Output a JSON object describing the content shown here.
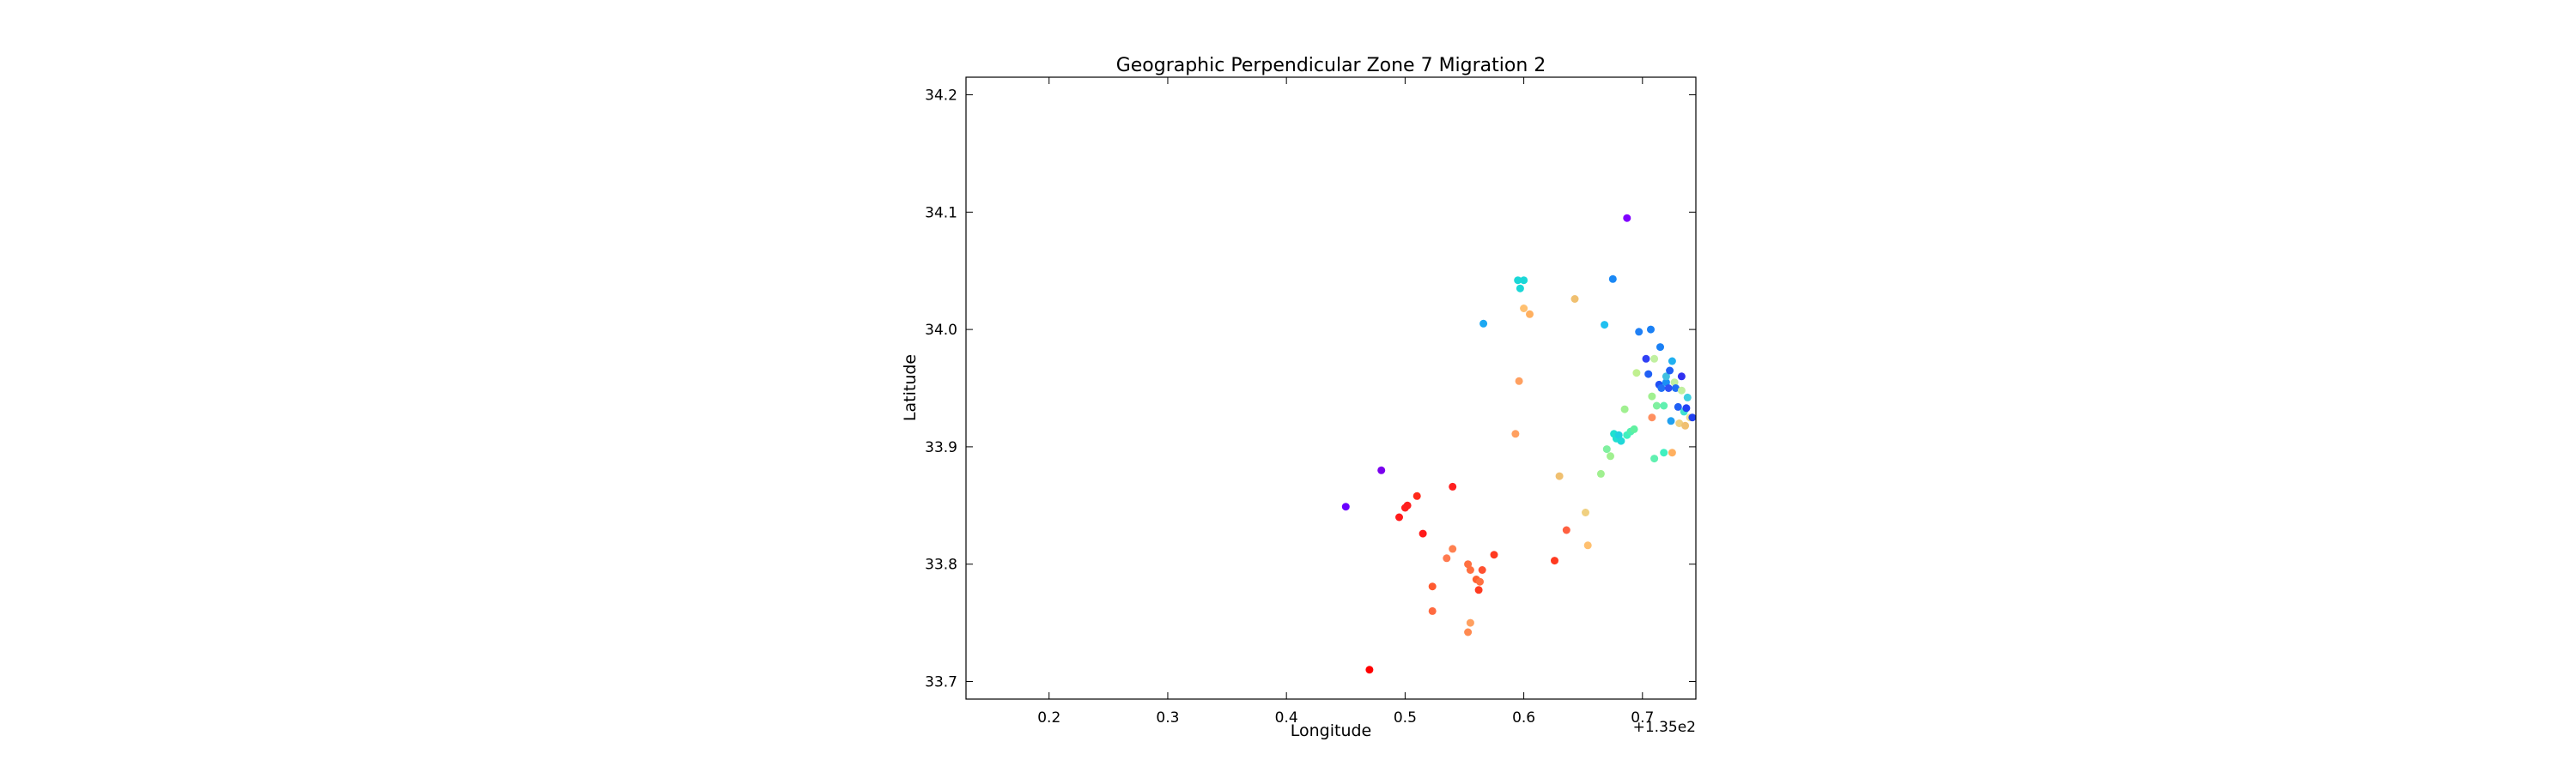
{
  "chart_data": {
    "type": "scatter",
    "title": "Geographic Perpendicular Zone 7 Migration 2",
    "xlabel": "Longitude",
    "ylabel": "Latitude",
    "x_offset_label": "+1.35e2",
    "xlim": [
      135.13,
      135.745
    ],
    "ylim": [
      33.685,
      34.215
    ],
    "xticks": [
      135.2,
      135.3,
      135.4,
      135.5,
      135.6,
      135.7
    ],
    "xtick_labels": [
      "0.2",
      "0.3",
      "0.4",
      "0.5",
      "0.6",
      "0.7"
    ],
    "yticks": [
      33.7,
      33.8,
      33.9,
      34.0,
      34.1,
      34.2
    ],
    "ytick_labels": [
      "33.7",
      "33.8",
      "33.9",
      "34.0",
      "34.1",
      "34.2"
    ],
    "grid": false,
    "legend": "none",
    "colormap": "rainbow",
    "points": [
      {
        "x": 135.45,
        "y": 33.849,
        "color": "#6a00ff"
      },
      {
        "x": 135.48,
        "y": 33.88,
        "color": "#7a00ee"
      },
      {
        "x": 135.687,
        "y": 34.095,
        "color": "#8000ff"
      },
      {
        "x": 135.47,
        "y": 33.71,
        "color": "#ff0000"
      },
      {
        "x": 135.495,
        "y": 33.84,
        "color": "#ff1a1a"
      },
      {
        "x": 135.5,
        "y": 33.848,
        "color": "#ff2020"
      },
      {
        "x": 135.502,
        "y": 33.85,
        "color": "#ff2020"
      },
      {
        "x": 135.51,
        "y": 33.858,
        "color": "#ff2a1a"
      },
      {
        "x": 135.515,
        "y": 33.826,
        "color": "#ff1a1a"
      },
      {
        "x": 135.54,
        "y": 33.866,
        "color": "#ff2020"
      },
      {
        "x": 135.523,
        "y": 33.781,
        "color": "#ff5a30"
      },
      {
        "x": 135.523,
        "y": 33.76,
        "color": "#ff6a40"
      },
      {
        "x": 135.535,
        "y": 33.805,
        "color": "#ff7a50"
      },
      {
        "x": 135.54,
        "y": 33.813,
        "color": "#ff8050"
      },
      {
        "x": 135.553,
        "y": 33.8,
        "color": "#ff7040"
      },
      {
        "x": 135.555,
        "y": 33.795,
        "color": "#ff7040"
      },
      {
        "x": 135.553,
        "y": 33.742,
        "color": "#ff8a50"
      },
      {
        "x": 135.555,
        "y": 33.75,
        "color": "#ffa060"
      },
      {
        "x": 135.56,
        "y": 33.787,
        "color": "#ff6030"
      },
      {
        "x": 135.562,
        "y": 33.778,
        "color": "#ff3a20"
      },
      {
        "x": 135.563,
        "y": 33.785,
        "color": "#ff7040"
      },
      {
        "x": 135.565,
        "y": 33.795,
        "color": "#ff5030"
      },
      {
        "x": 135.575,
        "y": 33.808,
        "color": "#ff3a20"
      },
      {
        "x": 135.566,
        "y": 34.005,
        "color": "#1ca8f2"
      },
      {
        "x": 135.595,
        "y": 34.042,
        "color": "#1ad7d7"
      },
      {
        "x": 135.597,
        "y": 34.035,
        "color": "#1ad7d7"
      },
      {
        "x": 135.6,
        "y": 34.042,
        "color": "#1ad7d7"
      },
      {
        "x": 135.6,
        "y": 34.018,
        "color": "#ffc070"
      },
      {
        "x": 135.605,
        "y": 34.013,
        "color": "#ffb060"
      },
      {
        "x": 135.596,
        "y": 33.956,
        "color": "#ffa060"
      },
      {
        "x": 135.593,
        "y": 33.911,
        "color": "#ffa060"
      },
      {
        "x": 135.63,
        "y": 33.875,
        "color": "#f0c070"
      },
      {
        "x": 135.636,
        "y": 33.829,
        "color": "#ff6040"
      },
      {
        "x": 135.626,
        "y": 33.803,
        "color": "#ff3a20"
      },
      {
        "x": 135.643,
        "y": 34.026,
        "color": "#f0c070"
      },
      {
        "x": 135.652,
        "y": 33.844,
        "color": "#f0d080"
      },
      {
        "x": 135.654,
        "y": 33.816,
        "color": "#ffc070"
      },
      {
        "x": 135.665,
        "y": 33.877,
        "color": "#a0f090"
      },
      {
        "x": 135.668,
        "y": 34.004,
        "color": "#20c0f0"
      },
      {
        "x": 135.67,
        "y": 33.898,
        "color": "#80f0a0"
      },
      {
        "x": 135.673,
        "y": 33.892,
        "color": "#a0f090"
      },
      {
        "x": 135.675,
        "y": 34.043,
        "color": "#1a88f5"
      },
      {
        "x": 135.676,
        "y": 33.911,
        "color": "#20e0d0"
      },
      {
        "x": 135.678,
        "y": 33.907,
        "color": "#20e0d0"
      },
      {
        "x": 135.68,
        "y": 33.91,
        "color": "#20d0e0"
      },
      {
        "x": 135.682,
        "y": 33.905,
        "color": "#20d8d8"
      },
      {
        "x": 135.685,
        "y": 33.932,
        "color": "#a0f090"
      },
      {
        "x": 135.687,
        "y": 33.91,
        "color": "#40f0c0"
      },
      {
        "x": 135.69,
        "y": 33.913,
        "color": "#50f0b0"
      },
      {
        "x": 135.693,
        "y": 33.915,
        "color": "#60f0a0"
      },
      {
        "x": 135.695,
        "y": 33.963,
        "color": "#c0f090"
      },
      {
        "x": 135.697,
        "y": 33.998,
        "color": "#2080f5"
      },
      {
        "x": 135.703,
        "y": 33.975,
        "color": "#3040f5"
      },
      {
        "x": 135.705,
        "y": 33.962,
        "color": "#2060f5"
      },
      {
        "x": 135.707,
        "y": 34.0,
        "color": "#1a80f5"
      },
      {
        "x": 135.708,
        "y": 33.943,
        "color": "#a0f090"
      },
      {
        "x": 135.708,
        "y": 33.925,
        "color": "#ff9060"
      },
      {
        "x": 135.71,
        "y": 33.975,
        "color": "#c0f0a0"
      },
      {
        "x": 135.71,
        "y": 33.89,
        "color": "#60f0b0"
      },
      {
        "x": 135.712,
        "y": 33.935,
        "color": "#80f0a0"
      },
      {
        "x": 135.714,
        "y": 33.953,
        "color": "#2050f5"
      },
      {
        "x": 135.715,
        "y": 33.985,
        "color": "#1a80f5"
      },
      {
        "x": 135.716,
        "y": 33.95,
        "color": "#2070f5"
      },
      {
        "x": 135.718,
        "y": 33.935,
        "color": "#60f0b0"
      },
      {
        "x": 135.718,
        "y": 33.895,
        "color": "#40f0c0"
      },
      {
        "x": 135.72,
        "y": 33.955,
        "color": "#1a90f5"
      },
      {
        "x": 135.72,
        "y": 33.96,
        "color": "#40c0e0"
      },
      {
        "x": 135.722,
        "y": 33.95,
        "color": "#3050f5"
      },
      {
        "x": 135.723,
        "y": 33.965,
        "color": "#2060f5"
      },
      {
        "x": 135.724,
        "y": 33.922,
        "color": "#20a0f0"
      },
      {
        "x": 135.725,
        "y": 33.895,
        "color": "#ffb060"
      },
      {
        "x": 135.725,
        "y": 33.973,
        "color": "#20b0f0"
      },
      {
        "x": 135.727,
        "y": 33.955,
        "color": "#c0f0a0"
      },
      {
        "x": 135.728,
        "y": 33.95,
        "color": "#2070f5"
      },
      {
        "x": 135.73,
        "y": 33.934,
        "color": "#2060f5"
      },
      {
        "x": 135.731,
        "y": 33.92,
        "color": "#f0d080"
      },
      {
        "x": 135.733,
        "y": 33.96,
        "color": "#3030f0"
      },
      {
        "x": 135.733,
        "y": 33.948,
        "color": "#c0f0a0"
      },
      {
        "x": 135.735,
        "y": 33.93,
        "color": "#40e0d0"
      },
      {
        "x": 135.736,
        "y": 33.918,
        "color": "#f0c070"
      },
      {
        "x": 135.737,
        "y": 33.933,
        "color": "#2040f5"
      },
      {
        "x": 135.738,
        "y": 33.942,
        "color": "#40d0e0"
      },
      {
        "x": 135.74,
        "y": 33.925,
        "color": "#f0e090"
      },
      {
        "x": 135.742,
        "y": 33.925,
        "color": "#2040f0"
      }
    ]
  }
}
